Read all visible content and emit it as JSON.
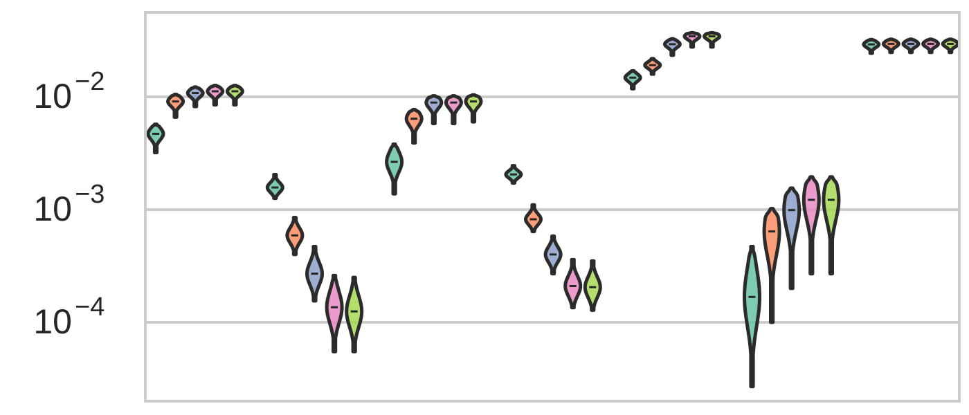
{
  "chart_data": {
    "type": "violin",
    "title": "",
    "xlabel": "",
    "ylabel": "",
    "yscale": "log",
    "ylim": [
      2e-05,
      0.055
    ],
    "grid": true,
    "y_ticks": [
      {
        "base": "10",
        "exp": "−4",
        "value": 0.0001
      },
      {
        "base": "10",
        "exp": "−3",
        "value": 0.001
      },
      {
        "base": "10",
        "exp": "−2",
        "value": 0.01
      }
    ],
    "series_colors": [
      "#66c2a5",
      "#fc8d62",
      "#8da0cb",
      "#e78ac3",
      "#a6d854"
    ],
    "groups": [
      {
        "violins": [
          {
            "median": 0.0047,
            "min": 0.0032,
            "max": 0.0057
          },
          {
            "median": 0.0091,
            "min": 0.0066,
            "max": 0.0105
          },
          {
            "median": 0.0108,
            "min": 0.0082,
            "max": 0.0122
          },
          {
            "median": 0.0112,
            "min": 0.0085,
            "max": 0.0126
          },
          {
            "median": 0.0112,
            "min": 0.0085,
            "max": 0.0126
          }
        ]
      },
      {
        "violins": [
          {
            "median": 0.00157,
            "min": 0.00126,
            "max": 0.00204
          },
          {
            "median": 0.00059,
            "min": 0.0004,
            "max": 0.00085
          },
          {
            "median": 0.00027,
            "min": 0.000155,
            "max": 0.00047
          },
          {
            "median": 0.000136,
            "min": 5.5e-05,
            "max": 0.00026
          },
          {
            "median": 0.000125,
            "min": 5.5e-05,
            "max": 0.00025
          }
        ]
      },
      {
        "violins": [
          {
            "median": 0.00265,
            "min": 0.00138,
            "max": 0.0038
          },
          {
            "median": 0.0064,
            "min": 0.0039,
            "max": 0.0077
          },
          {
            "median": 0.0089,
            "min": 0.0058,
            "max": 0.0102
          },
          {
            "median": 0.0089,
            "min": 0.0058,
            "max": 0.0102
          },
          {
            "median": 0.0091,
            "min": 0.006,
            "max": 0.0104
          }
        ]
      },
      {
        "violins": [
          {
            "median": 0.00205,
            "min": 0.00172,
            "max": 0.00245
          },
          {
            "median": 0.00082,
            "min": 0.00064,
            "max": 0.0011
          },
          {
            "median": 0.0004,
            "min": 0.00027,
            "max": 0.00058
          },
          {
            "median": 0.00021,
            "min": 0.000135,
            "max": 0.00036
          },
          {
            "median": 0.000205,
            "min": 0.000128,
            "max": 0.00035
          }
        ]
      },
      {
        "violins": [
          {
            "median": 0.0148,
            "min": 0.0118,
            "max": 0.017
          },
          {
            "median": 0.0191,
            "min": 0.0159,
            "max": 0.0218
          },
          {
            "median": 0.0293,
            "min": 0.0234,
            "max": 0.0327
          },
          {
            "median": 0.0344,
            "min": 0.0277,
            "max": 0.037
          },
          {
            "median": 0.0344,
            "min": 0.0277,
            "max": 0.037
          }
        ]
      },
      {
        "violins": [
          {
            "median": 0.000168,
            "min": 2.7e-05,
            "max": 0.00047
          },
          {
            "median": 0.00064,
            "min": 0.0001,
            "max": 0.00102
          },
          {
            "median": 0.00099,
            "min": 0.0002,
            "max": 0.00155
          },
          {
            "median": 0.00122,
            "min": 0.00027,
            "max": 0.00195
          },
          {
            "median": 0.00122,
            "min": 0.00027,
            "max": 0.00195
          }
        ]
      },
      {
        "violins": [
          {
            "median": 0.0292,
            "min": 0.0244,
            "max": 0.0322
          },
          {
            "median": 0.0295,
            "min": 0.0248,
            "max": 0.0324
          },
          {
            "median": 0.0295,
            "min": 0.0248,
            "max": 0.0324
          },
          {
            "median": 0.0295,
            "min": 0.0248,
            "max": 0.0324
          },
          {
            "median": 0.0295,
            "min": 0.0248,
            "max": 0.0324
          }
        ]
      }
    ]
  }
}
